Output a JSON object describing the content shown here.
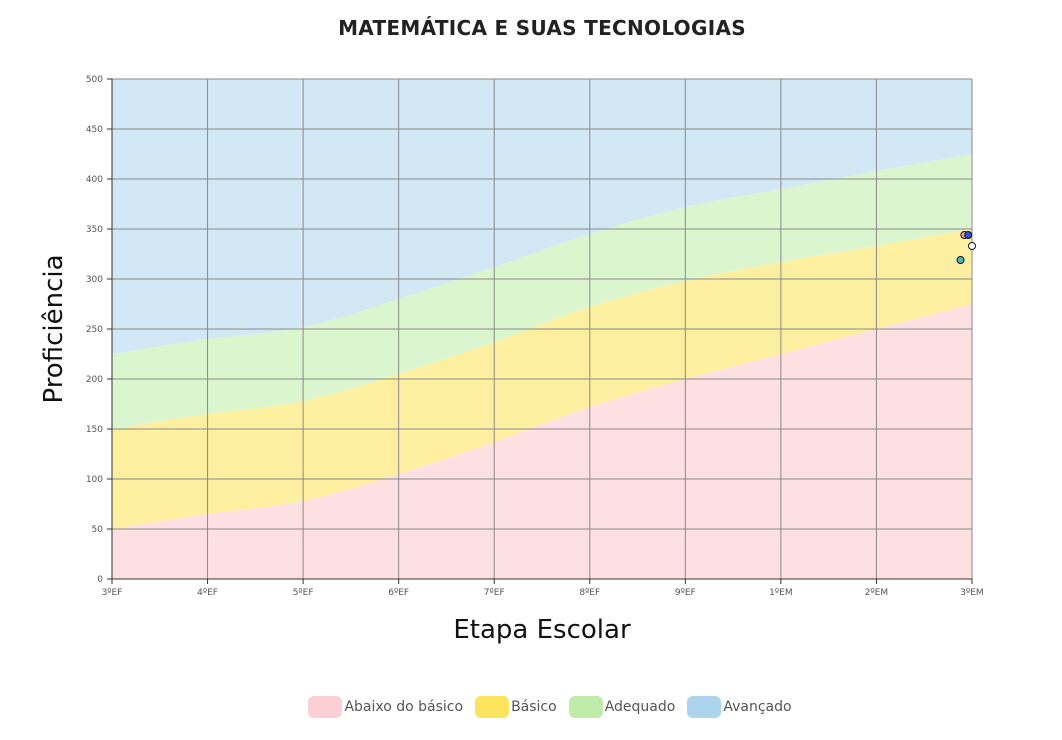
{
  "chart_data": {
    "type": "area",
    "title": "MATEMÁTICA E SUAS TECNOLOGIAS",
    "xlabel": "Etapa Escolar",
    "ylabel": "Proficiência",
    "categories": [
      "3ºEF",
      "4ºEF",
      "5ºEF",
      "6ºEF",
      "7ºEF",
      "8ºEF",
      "9ºEF",
      "1ºEM",
      "2ºEM",
      "3ºEM"
    ],
    "ylim": [
      0,
      500
    ],
    "yticks": [
      0,
      50,
      100,
      150,
      200,
      250,
      300,
      350,
      400,
      450,
      500
    ],
    "grid": true,
    "legend_position": "bottom",
    "bands": [
      {
        "name": "Abaixo do básico",
        "color": "#fde0e2",
        "swatch": "#fbcfd3",
        "lower": [
          0,
          0,
          0,
          0,
          0,
          0,
          0,
          0,
          0,
          0
        ],
        "upper": [
          50,
          65,
          78,
          105,
          137,
          172,
          200,
          225,
          250,
          275
        ]
      },
      {
        "name": "Básico",
        "color": "#fcef9f",
        "swatch": "#fce45c",
        "lower": [
          50,
          65,
          78,
          105,
          137,
          172,
          200,
          225,
          250,
          275
        ],
        "upper": [
          150,
          165,
          178,
          205,
          237,
          272,
          298,
          317,
          333,
          350
        ]
      },
      {
        "name": "Adequado",
        "color": "#dbf5ce",
        "swatch": "#c0ecaa",
        "lower": [
          150,
          165,
          178,
          205,
          237,
          272,
          298,
          317,
          333,
          350
        ],
        "upper": [
          225,
          240,
          252,
          280,
          312,
          345,
          372,
          390,
          408,
          425
        ]
      },
      {
        "name": "Avançado",
        "color": "#d2e8f4",
        "swatch": "#acd4ec",
        "lower": [
          225,
          240,
          252,
          280,
          312,
          345,
          372,
          390,
          408,
          425
        ],
        "upper": [
          500,
          500,
          500,
          500,
          500,
          500,
          500,
          500,
          500,
          500
        ]
      }
    ],
    "points": [
      {
        "x": 8.92,
        "y": 344,
        "color": "#f2a0a8"
      },
      {
        "x": 8.96,
        "y": 344,
        "color": "#3050e0"
      },
      {
        "x": 9.0,
        "y": 333,
        "color": "#ffffff"
      },
      {
        "x": 8.88,
        "y": 319,
        "color": "#48b8c8"
      }
    ]
  }
}
